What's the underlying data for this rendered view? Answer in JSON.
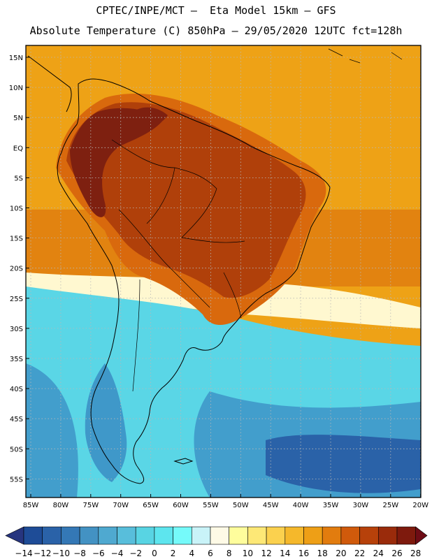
{
  "title_line1": "CPTEC/INPE/MCT –  Eta Model 15km – GFS",
  "title_line2": "Absolute Temperature (C) 850hPa – 29/05/2020 12UTC fct=128h",
  "lat_labels": [
    "15N",
    "10N",
    "5N",
    "EQ",
    "5S",
    "10S",
    "15S",
    "20S",
    "25S",
    "30S",
    "35S",
    "40S",
    "45S",
    "50S",
    "55S"
  ],
  "lon_labels": [
    "85W",
    "80W",
    "75W",
    "70W",
    "65W",
    "60W",
    "55W",
    "50W",
    "45W",
    "40W",
    "35W",
    "30W",
    "25W",
    "20W"
  ],
  "colorbar": {
    "labels": [
      "-14",
      "-12",
      "-10",
      "-8",
      "-6",
      "-4",
      "-2",
      "0",
      "2",
      "4",
      "6",
      "8",
      "10",
      "12",
      "14",
      "16",
      "18",
      "20",
      "22",
      "24",
      "26",
      "28"
    ],
    "low_color": "#27357f",
    "high_color": "#6e0c15",
    "colors": [
      "#1e4c97",
      "#2a62a8",
      "#3478b6",
      "#4392c3",
      "#4fa9d0",
      "#58bedb",
      "#58d4e3",
      "#5de5ee",
      "#75fafa",
      "#c9f3f8",
      "#fefae6",
      "#fefd9c",
      "#fde876",
      "#fbd14e",
      "#f5b82b",
      "#ee9f16",
      "#e27c0e",
      "#d05a0b",
      "#b7410a",
      "#9a2b0b",
      "#7e1a0d"
    ]
  },
  "colors": {
    "warm_background": "#eea216",
    "very_warm": "#d9690d",
    "hot": "#b0400a",
    "hottest": "#7e2010",
    "cool_sea": "#5ad6e6",
    "cold_sea": "#3f98c9",
    "coldest": "#2a62a8",
    "pale": "#fff8d0"
  }
}
